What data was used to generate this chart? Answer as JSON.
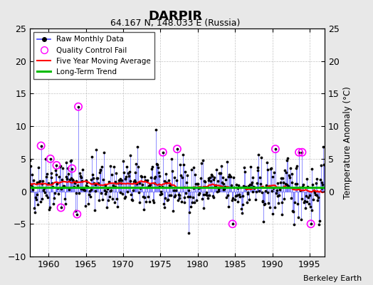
{
  "title": "DARPIR",
  "subtitle": "64.167 N, 148.033 E (Russia)",
  "ylabel": "Temperature Anomaly (°C)",
  "xlim": [
    1957.5,
    1997
  ],
  "ylim": [
    -10,
    25
  ],
  "yticks_left": [
    -10,
    -5,
    0,
    5,
    10,
    15,
    20,
    25
  ],
  "yticks_right": [
    0,
    5,
    10,
    15,
    20,
    25
  ],
  "xticks": [
    1960,
    1965,
    1970,
    1975,
    1980,
    1985,
    1990,
    1995
  ],
  "start_year": 1957,
  "end_year": 1996,
  "raw_color": "#4444ff",
  "qc_color": "#ff00ff",
  "moving_avg_color": "#ff0000",
  "trend_color": "#00bb00",
  "fig_background_color": "#e8e8e8",
  "plot_background_color": "#ffffff",
  "watermark": "Berkeley Earth"
}
